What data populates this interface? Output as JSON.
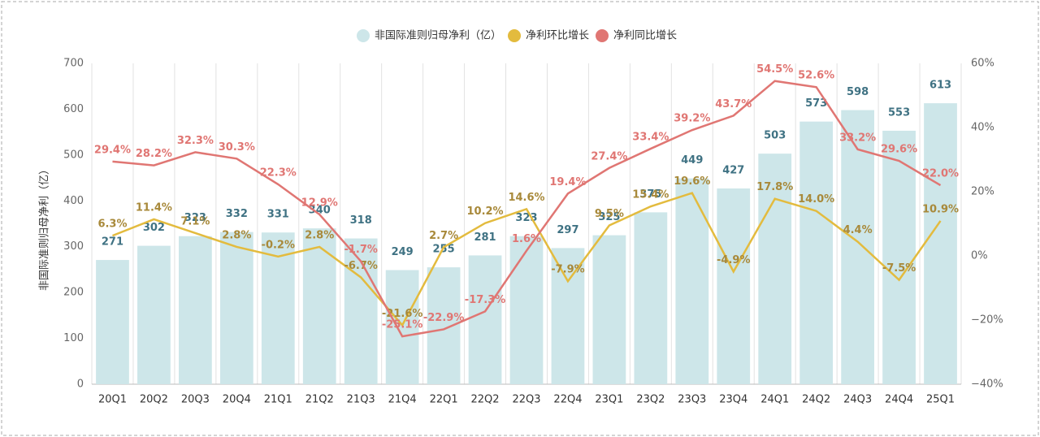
{
  "chart_data": {
    "type": "combo",
    "y_label": "非国际准则归母净利（亿）",
    "categories": [
      "20Q1",
      "20Q2",
      "20Q3",
      "20Q4",
      "21Q1",
      "21Q2",
      "21Q3",
      "21Q4",
      "22Q1",
      "22Q2",
      "22Q3",
      "22Q4",
      "23Q1",
      "23Q2",
      "23Q3",
      "23Q4",
      "24Q1",
      "24Q2",
      "24Q3",
      "24Q4",
      "25Q1"
    ],
    "ylim": [
      0,
      700
    ],
    "yticks": [
      0,
      100,
      200,
      300,
      400,
      500,
      600,
      700
    ],
    "y2lim": [
      -40,
      60
    ],
    "y2ticks": [
      {
        "value": -40,
        "label": "−40%"
      },
      {
        "value": -20,
        "label": "−20%"
      },
      {
        "value": 0,
        "label": "0%"
      },
      {
        "value": 20,
        "label": "20%"
      },
      {
        "value": 40,
        "label": "40%"
      },
      {
        "value": 60,
        "label": "60%"
      }
    ],
    "legend": "top",
    "series": [
      {
        "name": "非国际准则归母净利（亿）",
        "type": "bar",
        "color": "#cde6e9",
        "label_color": "#3f7283",
        "values": [
          271,
          302,
          323,
          332,
          331,
          340,
          318,
          249,
          255,
          281,
          323,
          297,
          325,
          375,
          449,
          427,
          503,
          573,
          598,
          553,
          613
        ]
      },
      {
        "name": "净利环比增长",
        "type": "line",
        "axis": "y2",
        "color": "#e3bb3e",
        "label_color": "#a8893a",
        "values": [
          6.3,
          11.4,
          7.1,
          2.8,
          -0.2,
          2.8,
          -6.7,
          -21.6,
          2.7,
          10.2,
          14.6,
          -7.9,
          9.5,
          15.4,
          19.6,
          -4.9,
          17.8,
          14.0,
          4.4,
          -7.5,
          10.9
        ],
        "value_labels": [
          "6.3%",
          "11.4%",
          "7.1%",
          "2.8%",
          "-0.2%",
          "2.8%",
          "-6.7%",
          "-21.6%",
          "2.7%",
          "10.2%",
          "14.6%",
          "-7.9%",
          "9.5%",
          "15.4%",
          "19.6%",
          "-4.9%",
          "17.8%",
          "14.0%",
          "4.4%",
          "-7.5%",
          "10.9%"
        ]
      },
      {
        "name": "净利同比增长",
        "type": "line",
        "axis": "y2",
        "color": "#e07673",
        "label_color": "#e07673",
        "values": [
          29.4,
          28.2,
          32.3,
          30.3,
          22.3,
          12.9,
          -1.7,
          -25.1,
          -22.9,
          -17.3,
          1.6,
          19.4,
          27.4,
          33.4,
          39.2,
          43.7,
          54.5,
          52.6,
          33.2,
          29.6,
          22.0
        ],
        "value_labels": [
          "29.4%",
          "28.2%",
          "32.3%",
          "30.3%",
          "22.3%",
          "12.9%",
          "-1.7%",
          "-25.1%",
          "-22.9%",
          "-17.3%",
          "1.6%",
          "19.4%",
          "27.4%",
          "33.4%",
          "39.2%",
          "43.7%",
          "54.5%",
          "52.6%",
          "33.2%",
          "29.6%",
          "22.0%"
        ]
      }
    ]
  }
}
